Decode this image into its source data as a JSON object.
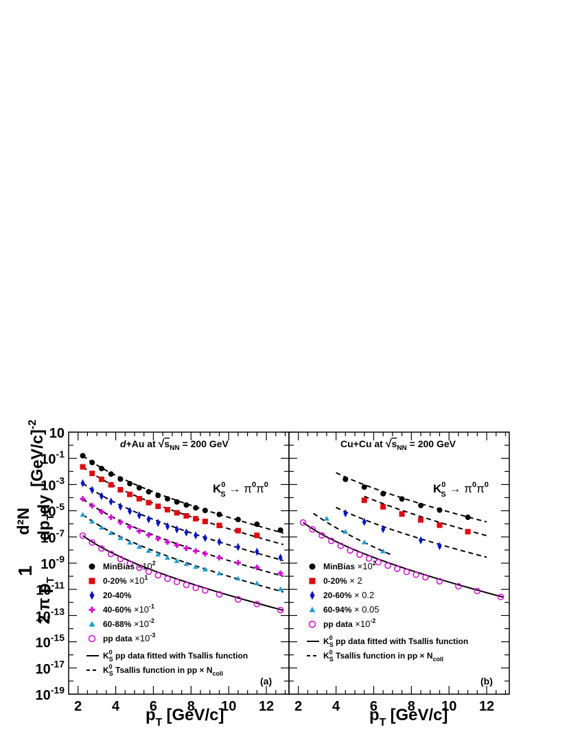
{
  "axes": {
    "ylabel_numerator": "1",
    "ylabel_denominator": "2 π p",
    "ylabel_frac_top": "d²N",
    "ylabel_frac_bottom": "dp",
    "ylabel_unit": "[GeV/c]",
    "ylabel_unit_exp": "-2",
    "xlabel_main": "p",
    "xlabel_sub": "T",
    "xlabel_unit": "[GeV/c]"
  },
  "chart_data": [
    {
      "type": "scatter",
      "panel": "a",
      "panel_letter": "(a)",
      "title_pre": "d+Au at",
      "title_sqrt": "s",
      "title_sqrt_sub": "NN",
      "title_post": "= 200 GeV",
      "decay_label": "K",
      "decay_sub": "S",
      "decay_sup": "0",
      "decay_arrow": "→",
      "decay_pi": "π",
      "decay_pi_sup": "0",
      "xlim": [
        1.5,
        13.2
      ],
      "ylim_log10": [
        -19,
        1
      ],
      "xticks": [
        2,
        4,
        6,
        8,
        10,
        12
      ],
      "yticks": [
        {
          "exp": 1,
          "label": "10"
        },
        {
          "exp": -1,
          "label": "10",
          "sup": "-1"
        },
        {
          "exp": -3,
          "label": "10",
          "sup": "-3"
        },
        {
          "exp": -5,
          "label": "10",
          "sup": "-5"
        },
        {
          "exp": -7,
          "label": "10",
          "sup": "-7"
        },
        {
          "exp": -9,
          "label": "10",
          "sup": "-9"
        },
        {
          "exp": -11,
          "label": "10",
          "sup": "-11"
        },
        {
          "exp": -13,
          "label": "10",
          "sup": "-13"
        },
        {
          "exp": -15,
          "label": "10",
          "sup": "-15"
        },
        {
          "exp": -17,
          "label": "10",
          "sup": "-17"
        },
        {
          "exp": -19,
          "label": "10",
          "sup": "-19"
        }
      ],
      "series": [
        {
          "name": "MinBias ×10²",
          "legend_text": "MinBias",
          "legend_scale": "×10",
          "legend_sup": "2",
          "marker": "circle",
          "color": "#000000",
          "x": [
            2.25,
            2.75,
            3.25,
            3.75,
            4.25,
            4.75,
            5.25,
            5.75,
            6.25,
            6.75,
            7.25,
            7.75,
            8.25,
            8.75,
            9.5,
            10.5,
            11.5,
            12.75
          ],
          "y_log10": [
            -0.8,
            -1.32,
            -1.78,
            -2.2,
            -2.58,
            -2.93,
            -3.25,
            -3.55,
            -3.83,
            -4.09,
            -4.33,
            -4.56,
            -4.78,
            -4.98,
            -5.28,
            -5.67,
            -6.03,
            -6.48
          ],
          "fit_log10": [
            -0.8,
            -6.7
          ]
        },
        {
          "name": "0-20% ×10¹",
          "legend_text": "0-20%",
          "legend_scale": "×10",
          "legend_sup": "1",
          "marker": "square",
          "color": "#e8000b",
          "x": [
            2.25,
            2.75,
            3.25,
            3.75,
            4.25,
            4.75,
            5.25,
            5.75,
            6.25,
            6.75,
            7.25,
            7.75,
            8.25,
            8.75,
            9.5,
            10.5,
            11.5
          ],
          "y_log10": [
            -1.65,
            -2.15,
            -2.6,
            -3.02,
            -3.4,
            -3.75,
            -4.08,
            -4.38,
            -4.66,
            -4.92,
            -5.16,
            -5.39,
            -5.61,
            -5.82,
            -6.12,
            -6.52,
            -6.88
          ],
          "fit_log10": [
            -1.65,
            -7.58
          ]
        },
        {
          "name": "20-40%",
          "legend_text": "20-40%",
          "legend_scale": "",
          "legend_sup": "",
          "marker": "diamond",
          "color": "#0010e0",
          "x": [
            2.25,
            2.75,
            3.25,
            3.75,
            4.25,
            4.75,
            5.25,
            5.75,
            6.25,
            6.75,
            7.25,
            7.75,
            8.25,
            8.75,
            9.5,
            10.5,
            11.5,
            12.75
          ],
          "y_log10": [
            -2.9,
            -3.42,
            -3.88,
            -4.3,
            -4.68,
            -5.03,
            -5.35,
            -5.65,
            -5.93,
            -6.19,
            -6.43,
            -6.66,
            -6.88,
            -7.08,
            -7.38,
            -7.77,
            -8.13,
            -8.58
          ],
          "fit_log10": [
            -2.9,
            -8.8
          ]
        },
        {
          "name": "40-60% ×10⁻¹",
          "legend_text": "40-60%",
          "legend_scale": "×10",
          "legend_sup": "-1",
          "marker": "plus",
          "color": "#e000e0",
          "x": [
            2.25,
            2.75,
            3.25,
            3.75,
            4.25,
            4.75,
            5.25,
            5.75,
            6.25,
            6.75,
            7.25,
            7.75,
            8.25,
            8.75,
            9.5,
            10.5,
            11.5,
            12.75
          ],
          "y_log10": [
            -4.1,
            -4.62,
            -5.08,
            -5.5,
            -5.88,
            -6.23,
            -6.55,
            -6.85,
            -7.13,
            -7.39,
            -7.63,
            -7.86,
            -8.08,
            -8.28,
            -8.58,
            -8.97,
            -9.33,
            -9.78
          ],
          "fit_log10": [
            -4.1,
            -10.0
          ]
        },
        {
          "name": "60-88% ×10⁻²",
          "legend_text": "60-88%",
          "legend_scale": "×10",
          "legend_sup": "-2",
          "marker": "triangle",
          "color": "#1a9fd9",
          "x": [
            2.25,
            2.75,
            3.25,
            3.75,
            4.25,
            4.75,
            5.25,
            5.75,
            6.25,
            6.75,
            7.25,
            7.75,
            8.25,
            8.75,
            9.5,
            10.5,
            11.5,
            12.75
          ],
          "y_log10": [
            -5.3,
            -5.82,
            -6.28,
            -6.7,
            -7.08,
            -7.43,
            -7.75,
            -8.05,
            -8.33,
            -8.59,
            -8.83,
            -9.06,
            -9.28,
            -9.48,
            -9.78,
            -10.17,
            -10.53,
            -10.98
          ],
          "fit_log10": [
            -5.3,
            -11.2
          ]
        },
        {
          "name": "pp data ×10⁻³",
          "legend_text": "pp data",
          "legend_scale": "×10",
          "legend_sup": "-3",
          "marker": "open-circle",
          "color": "#e000e0",
          "x": [
            2.25,
            2.75,
            3.25,
            3.75,
            4.25,
            4.75,
            5.25,
            5.75,
            6.25,
            6.75,
            7.25,
            7.75,
            8.25,
            8.75,
            9.5,
            10.5,
            11.5,
            12.75
          ],
          "y_log10": [
            -6.9,
            -7.42,
            -7.88,
            -8.3,
            -8.68,
            -9.03,
            -9.35,
            -9.65,
            -9.93,
            -10.19,
            -10.43,
            -10.66,
            -10.88,
            -11.08,
            -11.38,
            -11.77,
            -12.13,
            -12.58
          ],
          "fit_log10": [
            -6.9,
            -12.6
          ]
        }
      ],
      "legend_lines": [
        {
          "style": "solid",
          "pre": "K",
          "sub": "S",
          "sup": "0",
          "text": " pp data fitted with Tsallis function"
        },
        {
          "style": "dashed",
          "pre": "K",
          "sub": "S",
          "sup": "0",
          "text": " Tsallis function in pp × N",
          "tail_sub": "coll"
        }
      ]
    },
    {
      "type": "scatter",
      "panel": "b",
      "panel_letter": "(b)",
      "title_pre": "Cu+Cu at",
      "title_sqrt": "s",
      "title_sqrt_sub": "NN",
      "title_post": "= 200 GeV",
      "decay_label": "K",
      "decay_sub": "S",
      "decay_sup": "0",
      "decay_arrow": "→",
      "decay_pi": "π",
      "decay_pi_sup": "0",
      "xlim": [
        1.5,
        13.2
      ],
      "ylim_log10": [
        -19,
        1
      ],
      "xticks": [
        2,
        4,
        6,
        8,
        10,
        12
      ],
      "series": [
        {
          "name": "MinBias ×10²",
          "legend_text": "MinBias",
          "legend_scale": "×10",
          "legend_sup": "2",
          "marker": "circle",
          "color": "#000000",
          "x": [
            4.5,
            5.5,
            6.5,
            7.5,
            8.5,
            9.5,
            11.0
          ],
          "y_log10": [
            -2.6,
            -3.2,
            -3.7,
            -4.1,
            -4.6,
            -4.95,
            -5.5
          ],
          "fit_x": [
            4.0,
            12.0
          ],
          "fit_log10": [
            -2.1,
            -5.85
          ]
        },
        {
          "name": "0-20% ×2",
          "legend_text": "0-20%",
          "legend_scale": "× 2",
          "legend_sup": "",
          "marker": "square",
          "color": "#e8000b",
          "x": [
            5.5,
            6.5,
            7.5,
            8.5,
            9.5,
            11.0
          ],
          "y_log10": [
            -4.2,
            -4.7,
            -5.25,
            -5.7,
            -6.1,
            -6.6
          ],
          "fit_x": [
            5.5,
            12.0
          ],
          "fit_log10": [
            -3.9,
            -6.9
          ]
        },
        {
          "name": "20-60% ×0.2",
          "legend_text": "20-60%",
          "legend_scale": "× 0.2",
          "legend_sup": "",
          "marker": "diamond",
          "color": "#0010e0",
          "x": [
            4.5,
            5.5,
            6.5,
            8.5,
            9.5
          ],
          "y_log10": [
            -5.2,
            -5.85,
            -6.4,
            -7.25,
            -7.7
          ],
          "fit_x": [
            4.0,
            12.0
          ],
          "fit_log10": [
            -4.75,
            -8.55
          ]
        },
        {
          "name": "60-94% ×0.05",
          "legend_text": "60-94%",
          "legend_scale": "× 0.05",
          "legend_sup": "",
          "marker": "triangle",
          "color": "#1a9fd9",
          "x": [
            3.5,
            4.5,
            5.5,
            6.5
          ],
          "y_log10": [
            -5.6,
            -6.6,
            -7.4,
            -8.1
          ],
          "fit_x": [
            2.8,
            7.0
          ],
          "fit_log10": [
            -5.2,
            -8.4
          ]
        },
        {
          "name": "pp data ×10⁻²",
          "legend_text": "pp data",
          "legend_scale": "×10",
          "legend_sup": "-2",
          "marker": "open-circle",
          "color": "#e000e0",
          "x": [
            2.25,
            2.75,
            3.25,
            3.75,
            4.25,
            4.75,
            5.25,
            5.75,
            6.25,
            6.75,
            7.25,
            7.75,
            8.25,
            8.75,
            9.5,
            10.5,
            11.5,
            12.75
          ],
          "y_log10": [
            -5.9,
            -6.42,
            -6.88,
            -7.3,
            -7.68,
            -8.03,
            -8.35,
            -8.65,
            -8.93,
            -9.19,
            -9.43,
            -9.66,
            -9.88,
            -10.08,
            -10.38,
            -10.77,
            -11.13,
            -11.58
          ],
          "fit_log10": [
            -5.9,
            -11.6
          ]
        }
      ],
      "legend_lines": [
        {
          "style": "solid",
          "pre": "K",
          "sub": "S",
          "sup": "0",
          "text": " pp data fitted with Tsallis function"
        },
        {
          "style": "dashed",
          "pre": "K",
          "sub": "S",
          "sup": "0",
          "text": " Tsallis function in pp × N",
          "tail_sub": "coll"
        }
      ]
    }
  ]
}
